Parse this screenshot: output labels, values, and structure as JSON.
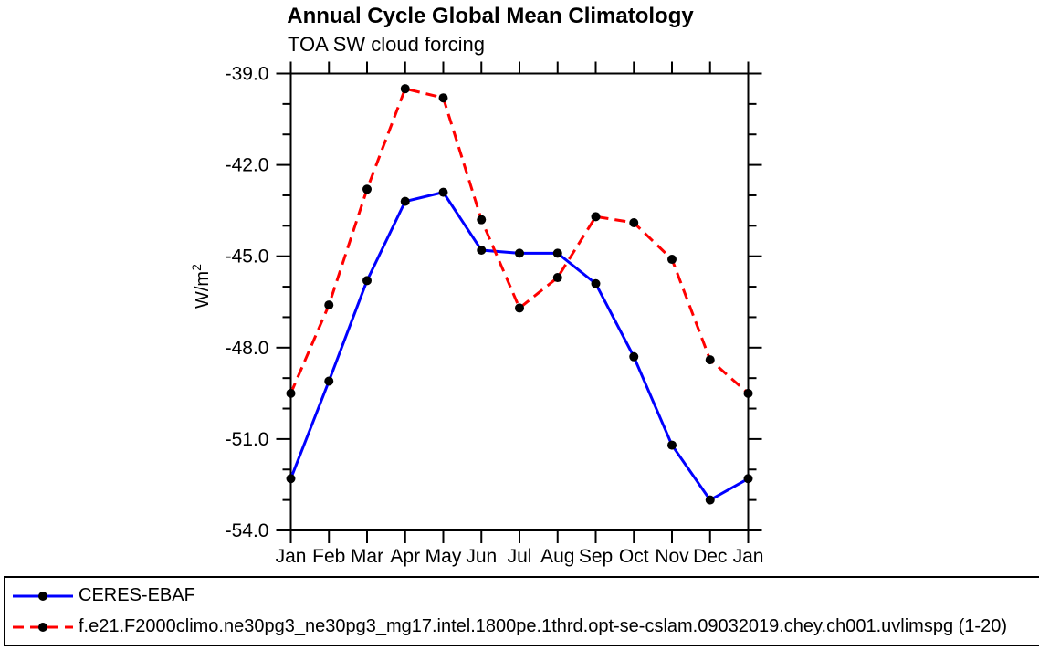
{
  "chart_data": {
    "type": "line",
    "title": "Annual Cycle Global Mean Climatology",
    "subtitle": "TOA SW cloud forcing",
    "ylabel": "W/m²",
    "xlabel": "",
    "x_ticklabels": [
      "Jan",
      "Feb",
      "Mar",
      "Apr",
      "May",
      "Jun",
      "Jul",
      "Aug",
      "Sep",
      "Oct",
      "Nov",
      "Dec",
      "Jan"
    ],
    "y_ticks": [
      -39,
      -42,
      -45,
      -48,
      -51,
      -54
    ],
    "y_ticklabels": [
      "-39.0",
      "-42.0",
      "-45.0",
      "-48.0",
      "-51.0",
      "-54.0"
    ],
    "ylim": [
      -54,
      -39
    ],
    "y_minor_step": 1,
    "grid": false,
    "legend_position": "bottom",
    "marker_color": "#000000",
    "series": [
      {
        "name": "CERES-EBAF",
        "color": "#0000ff",
        "style": "solid",
        "values": [
          -52.3,
          -49.1,
          -45.8,
          -43.2,
          -42.9,
          -44.8,
          -44.9,
          -44.9,
          -45.9,
          -48.3,
          -51.2,
          -53.0,
          -52.3
        ]
      },
      {
        "name": "f.e21.F2000climo.ne30pg3_ne30pg3_mg17.intel.1800pe.1thrd.opt-se-cslam.09032019.chey.ch001.uvlimspg (1-20)",
        "color": "#ff0000",
        "style": "dashed",
        "values": [
          -49.5,
          -46.6,
          -42.8,
          -39.5,
          -39.8,
          -43.8,
          -46.7,
          -45.7,
          -43.7,
          -43.9,
          -45.1,
          -48.4,
          -49.5
        ]
      }
    ]
  }
}
